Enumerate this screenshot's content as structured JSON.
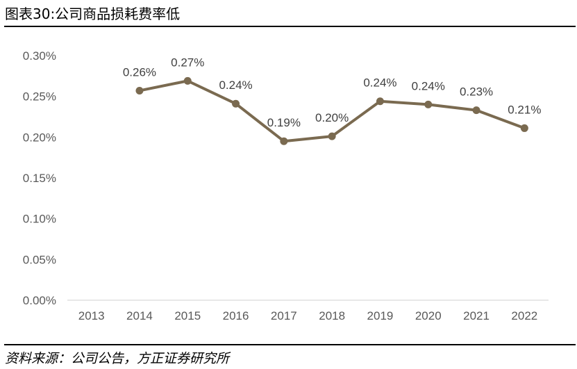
{
  "header": {
    "title": "图表30:公司商品损耗费率低"
  },
  "footer": {
    "source": "资料来源：公司公告，方正证券研究所"
  },
  "colors": {
    "series": "#7a6a50",
    "axis": "#d9d9d9",
    "text": "#595959"
  },
  "chart_data": {
    "type": "line",
    "title": "",
    "xlabel": "",
    "ylabel": "",
    "categories": [
      "2013",
      "2014",
      "2015",
      "2016",
      "2017",
      "2018",
      "2019",
      "2020",
      "2021",
      "2022"
    ],
    "series": [
      {
        "values": [
          null,
          0.257,
          0.269,
          0.241,
          0.195,
          0.201,
          0.244,
          0.24,
          0.233,
          0.211
        ],
        "labels": [
          null,
          "0.26%",
          "0.27%",
          "0.24%",
          "0.19%",
          "0.20%",
          "0.24%",
          "0.24%",
          "0.23%",
          "0.21%"
        ]
      }
    ],
    "ylim": [
      0,
      0.3
    ],
    "yticks": [
      "0.00%",
      "0.05%",
      "0.10%",
      "0.15%",
      "0.20%",
      "0.25%",
      "0.30%"
    ],
    "grid": false,
    "legend": "none"
  }
}
